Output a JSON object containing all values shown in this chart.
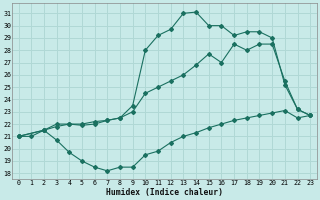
{
  "xlabel": "Humidex (Indice chaleur)",
  "bg_color": "#c8eae8",
  "grid_color": "#b0d8d5",
  "line_color": "#1a7060",
  "markersize": 2.0,
  "x_ticks": [
    0,
    1,
    2,
    3,
    4,
    5,
    6,
    7,
    8,
    9,
    10,
    11,
    12,
    13,
    14,
    15,
    16,
    17,
    18,
    19,
    20,
    21,
    22,
    23
  ],
  "y_ticks": [
    18,
    19,
    20,
    21,
    22,
    23,
    24,
    25,
    26,
    27,
    28,
    29,
    30,
    31
  ],
  "xlim": [
    -0.5,
    23.5
  ],
  "ylim": [
    17.5,
    31.8
  ],
  "line_min_x": [
    0,
    1,
    2,
    3,
    4,
    5,
    6,
    7,
    8,
    9,
    10,
    11,
    12,
    13,
    14,
    15,
    16,
    17,
    18,
    19,
    20,
    21,
    22,
    23
  ],
  "line_min_y": [
    21.0,
    21.0,
    21.5,
    20.7,
    19.7,
    19.0,
    18.5,
    18.2,
    18.5,
    18.5,
    19.5,
    19.8,
    20.5,
    21.0,
    21.3,
    21.7,
    22.0,
    22.3,
    22.5,
    22.7,
    22.9,
    23.1,
    22.5,
    22.7
  ],
  "line_mid_x": [
    0,
    2,
    3,
    4,
    5,
    6,
    7,
    8,
    9,
    10,
    11,
    12,
    13,
    14,
    15,
    16,
    17,
    18,
    19,
    20,
    21,
    22,
    23
  ],
  "line_mid_y": [
    21.0,
    21.5,
    21.8,
    22.0,
    21.9,
    22.0,
    22.3,
    22.5,
    23.0,
    24.5,
    25.0,
    25.5,
    26.0,
    26.8,
    27.7,
    27.0,
    28.5,
    28.0,
    28.5,
    28.5,
    25.5,
    23.2,
    22.7
  ],
  "line_max_x": [
    0,
    2,
    3,
    4,
    5,
    6,
    7,
    8,
    9,
    10,
    11,
    12,
    13,
    14,
    15,
    16,
    17,
    18,
    19,
    20,
    21,
    22,
    23
  ],
  "line_max_y": [
    21.0,
    21.5,
    22.0,
    22.0,
    22.0,
    22.2,
    22.3,
    22.5,
    23.5,
    28.0,
    29.2,
    29.7,
    31.0,
    31.1,
    30.0,
    30.0,
    29.2,
    29.5,
    29.5,
    29.0,
    25.2,
    23.2,
    22.7
  ]
}
